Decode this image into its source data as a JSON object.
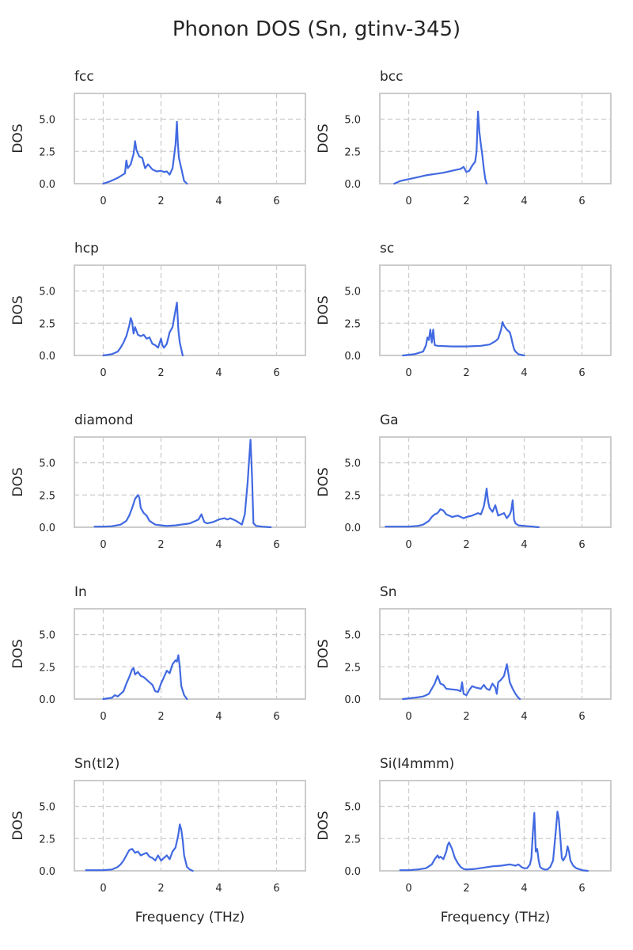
{
  "title": "Phonon DOS (Sn, gtinv-345)",
  "line_color": "#4169e1",
  "chart_data": [
    {
      "type": "line",
      "title": "fcc",
      "xlabel": "",
      "ylabel": "DOS",
      "xlim": [
        -1,
        7
      ],
      "ylim": [
        0,
        7
      ],
      "xticks": [
        "0",
        "2",
        "4",
        "6"
      ],
      "yticks": [
        "0.0",
        "2.5",
        "5.0"
      ],
      "grid": true,
      "x": [
        0.0,
        0.2,
        0.5,
        0.75,
        0.8,
        0.85,
        0.95,
        1.05,
        1.1,
        1.15,
        1.25,
        1.35,
        1.45,
        1.55,
        1.7,
        1.85,
        2.0,
        2.1,
        2.2,
        2.3,
        2.4,
        2.5,
        2.55,
        2.58,
        2.62,
        2.7,
        2.8,
        2.9
      ],
      "y": [
        0.0,
        0.15,
        0.45,
        0.8,
        1.8,
        1.2,
        1.5,
        2.3,
        3.3,
        2.6,
        2.1,
        2.0,
        1.2,
        1.5,
        1.1,
        0.95,
        1.0,
        0.9,
        0.95,
        0.7,
        1.2,
        3.0,
        4.8,
        3.2,
        2.0,
        1.2,
        0.2,
        0.0
      ]
    },
    {
      "type": "line",
      "title": "bcc",
      "xlabel": "",
      "ylabel": "DOS",
      "xlim": [
        -1,
        7
      ],
      "ylim": [
        0,
        7
      ],
      "xticks": [
        "0",
        "2",
        "4",
        "6"
      ],
      "yticks": [
        "0.0",
        "2.5",
        "5.0"
      ],
      "grid": true,
      "x": [
        -0.5,
        -0.3,
        0.0,
        0.3,
        0.6,
        0.9,
        1.2,
        1.5,
        1.8,
        1.9,
        2.0,
        2.1,
        2.2,
        2.3,
        2.35,
        2.4,
        2.45,
        2.5,
        2.55,
        2.6,
        2.65,
        2.7
      ],
      "y": [
        0.0,
        0.2,
        0.35,
        0.5,
        0.65,
        0.75,
        0.85,
        1.0,
        1.15,
        1.3,
        0.9,
        1.0,
        1.4,
        1.7,
        2.5,
        5.6,
        4.0,
        3.0,
        2.2,
        1.2,
        0.4,
        0.0
      ]
    },
    {
      "type": "line",
      "title": "hcp",
      "xlabel": "",
      "ylabel": "DOS",
      "xlim": [
        -1,
        7
      ],
      "ylim": [
        0,
        7
      ],
      "xticks": [
        "0",
        "2",
        "4",
        "6"
      ],
      "yticks": [
        "0.0",
        "2.5",
        "5.0"
      ],
      "grid": true,
      "x": [
        0.0,
        0.3,
        0.5,
        0.6,
        0.7,
        0.8,
        0.9,
        0.95,
        1.0,
        1.05,
        1.1,
        1.2,
        1.3,
        1.4,
        1.5,
        1.6,
        1.7,
        1.8,
        1.9,
        2.0,
        2.05,
        2.1,
        2.2,
        2.3,
        2.4,
        2.5,
        2.55,
        2.6,
        2.65,
        2.75
      ],
      "y": [
        0.0,
        0.1,
        0.3,
        0.6,
        1.0,
        1.5,
        2.3,
        2.9,
        2.6,
        1.7,
        2.2,
        1.6,
        1.5,
        1.6,
        1.3,
        1.4,
        0.9,
        0.8,
        0.6,
        1.3,
        0.8,
        0.6,
        0.9,
        1.8,
        2.2,
        3.5,
        4.1,
        2.0,
        1.0,
        0.0
      ]
    },
    {
      "type": "line",
      "title": "sc",
      "xlabel": "",
      "ylabel": "DOS",
      "xlim": [
        -1,
        7
      ],
      "ylim": [
        0,
        7
      ],
      "xticks": [
        "0",
        "2",
        "4",
        "6"
      ],
      "yticks": [
        "0.0",
        "2.5",
        "5.0"
      ],
      "grid": true,
      "x": [
        -0.2,
        0.2,
        0.5,
        0.6,
        0.65,
        0.7,
        0.75,
        0.8,
        0.85,
        0.9,
        1.0,
        1.5,
        2.0,
        2.5,
        2.8,
        3.0,
        3.1,
        3.2,
        3.25,
        3.3,
        3.4,
        3.5,
        3.55,
        3.6,
        3.65,
        3.7,
        3.8,
        4.0
      ],
      "y": [
        0.0,
        0.1,
        0.3,
        0.8,
        1.4,
        1.2,
        2.0,
        1.0,
        2.0,
        0.8,
        0.75,
        0.7,
        0.7,
        0.75,
        0.85,
        1.1,
        1.3,
        2.0,
        2.6,
        2.3,
        2.0,
        1.8,
        1.4,
        0.9,
        0.5,
        0.3,
        0.1,
        0.0
      ]
    },
    {
      "type": "line",
      "title": "diamond",
      "xlabel": "",
      "ylabel": "DOS",
      "xlim": [
        -1,
        7
      ],
      "ylim": [
        0,
        7
      ],
      "xticks": [
        "0",
        "2",
        "4",
        "6"
      ],
      "yticks": [
        "0.0",
        "2.5",
        "5.0"
      ],
      "grid": true,
      "x": [
        -0.3,
        0.0,
        0.3,
        0.6,
        0.8,
        0.9,
        1.0,
        1.1,
        1.2,
        1.25,
        1.3,
        1.4,
        1.5,
        1.6,
        1.8,
        2.0,
        2.2,
        2.5,
        3.0,
        3.3,
        3.4,
        3.45,
        3.5,
        3.6,
        3.8,
        4.0,
        4.2,
        4.3,
        4.4,
        4.6,
        4.8,
        4.9,
        5.0,
        5.05,
        5.1,
        5.15,
        5.2,
        5.3,
        5.5,
        5.8
      ],
      "y": [
        0.05,
        0.05,
        0.08,
        0.2,
        0.5,
        0.9,
        1.5,
        2.2,
        2.5,
        2.3,
        1.5,
        1.1,
        0.9,
        0.5,
        0.2,
        0.15,
        0.1,
        0.15,
        0.3,
        0.6,
        1.0,
        0.7,
        0.4,
        0.3,
        0.4,
        0.6,
        0.7,
        0.6,
        0.7,
        0.5,
        0.2,
        1.0,
        3.5,
        5.2,
        6.8,
        4.0,
        0.3,
        0.1,
        0.05,
        0.0
      ]
    },
    {
      "type": "line",
      "title": "Ga",
      "xlabel": "",
      "ylabel": "DOS",
      "xlim": [
        -1,
        7
      ],
      "ylim": [
        0,
        7
      ],
      "xticks": [
        "0",
        "2",
        "4",
        "6"
      ],
      "yticks": [
        "0.0",
        "2.5",
        "5.0"
      ],
      "grid": true,
      "x": [
        -0.8,
        -0.5,
        0.0,
        0.3,
        0.5,
        0.7,
        0.8,
        0.9,
        1.0,
        1.1,
        1.2,
        1.3,
        1.4,
        1.5,
        1.7,
        1.9,
        2.0,
        2.2,
        2.4,
        2.5,
        2.6,
        2.65,
        2.7,
        2.75,
        2.8,
        2.9,
        3.0,
        3.1,
        3.2,
        3.3,
        3.4,
        3.5,
        3.55,
        3.6,
        3.65,
        3.7,
        3.8,
        4.0,
        4.3,
        4.5
      ],
      "y": [
        0.05,
        0.05,
        0.05,
        0.1,
        0.2,
        0.5,
        0.8,
        1.0,
        1.1,
        1.4,
        1.3,
        1.0,
        0.9,
        0.8,
        0.9,
        0.7,
        0.8,
        0.9,
        1.1,
        1.0,
        1.6,
        2.2,
        3.0,
        2.0,
        1.5,
        1.2,
        1.7,
        0.9,
        1.0,
        1.1,
        0.7,
        1.0,
        1.3,
        2.1,
        0.6,
        0.3,
        0.15,
        0.1,
        0.05,
        0.0
      ]
    },
    {
      "type": "line",
      "title": "In",
      "xlabel": "",
      "ylabel": "DOS",
      "xlim": [
        -1,
        7
      ],
      "ylim": [
        0,
        7
      ],
      "xticks": [
        "0",
        "2",
        "4",
        "6"
      ],
      "yticks": [
        "0.0",
        "2.5",
        "5.0"
      ],
      "grid": true,
      "x": [
        0.0,
        0.3,
        0.4,
        0.5,
        0.7,
        0.8,
        0.9,
        1.0,
        1.05,
        1.1,
        1.2,
        1.3,
        1.4,
        1.5,
        1.6,
        1.7,
        1.8,
        1.9,
        2.0,
        2.1,
        2.2,
        2.3,
        2.4,
        2.5,
        2.55,
        2.6,
        2.65,
        2.7,
        2.8,
        2.9
      ],
      "y": [
        0.0,
        0.1,
        0.3,
        0.2,
        0.6,
        1.2,
        1.7,
        2.3,
        2.4,
        1.9,
        2.1,
        1.8,
        1.7,
        1.5,
        1.3,
        1.1,
        0.6,
        0.55,
        1.2,
        1.7,
        2.2,
        2.0,
        2.7,
        3.0,
        2.9,
        3.4,
        2.5,
        1.0,
        0.3,
        0.0
      ]
    },
    {
      "type": "line",
      "title": "Sn",
      "xlabel": "",
      "ylabel": "DOS",
      "xlim": [
        -1,
        7
      ],
      "ylim": [
        0,
        7
      ],
      "xticks": [
        "0",
        "2",
        "4",
        "6"
      ],
      "yticks": [
        "0.0",
        "2.5",
        "5.0"
      ],
      "grid": true,
      "x": [
        -0.2,
        0.2,
        0.5,
        0.7,
        0.8,
        0.9,
        0.95,
        1.0,
        1.1,
        1.2,
        1.3,
        1.5,
        1.7,
        1.8,
        1.85,
        1.9,
        2.0,
        2.1,
        2.2,
        2.3,
        2.5,
        2.6,
        2.7,
        2.8,
        2.9,
        3.0,
        3.05,
        3.1,
        3.2,
        3.3,
        3.4,
        3.5,
        3.6,
        3.7,
        3.8,
        3.85
      ],
      "y": [
        0.0,
        0.1,
        0.2,
        0.4,
        0.8,
        1.2,
        1.5,
        1.8,
        1.2,
        1.1,
        0.8,
        0.75,
        0.7,
        0.6,
        1.3,
        0.4,
        0.3,
        0.7,
        1.0,
        0.9,
        0.8,
        1.1,
        0.8,
        0.7,
        1.2,
        0.9,
        0.4,
        1.3,
        1.5,
        1.8,
        2.7,
        1.3,
        0.8,
        0.4,
        0.1,
        0.0
      ]
    },
    {
      "type": "line",
      "title": "Sn(tI2)",
      "xlabel": "Frequency (THz)",
      "ylabel": "DOS",
      "xlim": [
        -1,
        7
      ],
      "ylim": [
        0,
        7
      ],
      "xticks": [
        "0",
        "2",
        "4",
        "6"
      ],
      "yticks": [
        "0.0",
        "2.5",
        "5.0"
      ],
      "grid": true,
      "x": [
        -0.6,
        -0.3,
        0.0,
        0.3,
        0.5,
        0.6,
        0.7,
        0.8,
        0.9,
        1.0,
        1.1,
        1.2,
        1.3,
        1.4,
        1.5,
        1.6,
        1.7,
        1.8,
        1.9,
        2.0,
        2.1,
        2.2,
        2.3,
        2.4,
        2.5,
        2.6,
        2.65,
        2.7,
        2.75,
        2.8,
        2.9,
        3.0,
        3.1
      ],
      "y": [
        0.05,
        0.05,
        0.05,
        0.1,
        0.3,
        0.5,
        0.8,
        1.2,
        1.6,
        1.7,
        1.4,
        1.5,
        1.2,
        1.3,
        1.4,
        1.1,
        1.0,
        0.8,
        1.2,
        0.8,
        1.0,
        1.2,
        0.9,
        1.5,
        1.8,
        2.8,
        3.6,
        3.2,
        2.4,
        1.2,
        0.3,
        0.1,
        0.0
      ]
    },
    {
      "type": "line",
      "title": "Si(I4mmm)",
      "xlabel": "Frequency (THz)",
      "ylabel": "DOS",
      "xlim": [
        -1,
        7
      ],
      "ylim": [
        0,
        7
      ],
      "xticks": [
        "0",
        "2",
        "4",
        "6"
      ],
      "yticks": [
        "0.0",
        "2.5",
        "5.0"
      ],
      "grid": true,
      "x": [
        -0.3,
        0.0,
        0.3,
        0.6,
        0.8,
        0.9,
        1.0,
        1.05,
        1.1,
        1.2,
        1.3,
        1.35,
        1.4,
        1.5,
        1.6,
        1.7,
        1.8,
        1.9,
        2.0,
        2.3,
        2.6,
        2.9,
        3.2,
        3.5,
        3.6,
        3.7,
        3.8,
        3.9,
        4.0,
        4.1,
        4.2,
        4.25,
        4.3,
        4.35,
        4.4,
        4.45,
        4.5,
        4.55,
        4.6,
        4.7,
        4.8,
        4.9,
        5.0,
        5.05,
        5.1,
        5.15,
        5.2,
        5.25,
        5.3,
        5.35,
        5.4,
        5.45,
        5.5,
        5.55,
        5.6,
        5.7,
        5.8,
        6.0,
        6.2
      ],
      "y": [
        0.05,
        0.05,
        0.1,
        0.2,
        0.5,
        0.9,
        1.2,
        1.0,
        1.1,
        0.9,
        1.5,
        2.0,
        2.2,
        1.7,
        1.0,
        0.6,
        0.3,
        0.15,
        0.1,
        0.15,
        0.25,
        0.35,
        0.4,
        0.5,
        0.45,
        0.4,
        0.5,
        0.3,
        0.2,
        0.2,
        0.5,
        1.0,
        3.0,
        4.5,
        1.5,
        1.7,
        0.8,
        0.3,
        0.2,
        0.1,
        0.1,
        0.3,
        0.8,
        2.0,
        3.2,
        4.6,
        4.0,
        2.6,
        1.0,
        0.8,
        1.0,
        1.2,
        1.9,
        1.5,
        0.8,
        0.4,
        0.2,
        0.05,
        0.0
      ]
    }
  ]
}
